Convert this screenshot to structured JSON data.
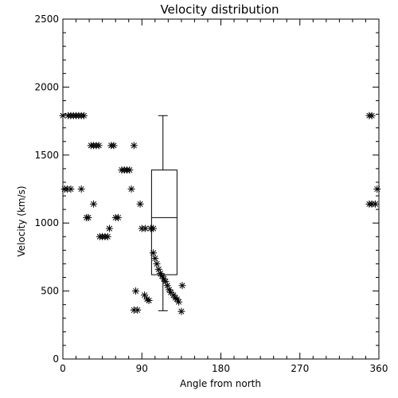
{
  "chart_data": {
    "type": "scatter",
    "title": "Velocity distribution",
    "xlabel": "Angle from north",
    "ylabel": "Velocity (km/s)",
    "xlim": [
      0,
      360
    ],
    "ylim": [
      0,
      2500
    ],
    "xticks": [
      0,
      90,
      180,
      270,
      360
    ],
    "yticks": [
      0,
      500,
      1000,
      1500,
      2000,
      2500
    ],
    "minor_ticks": true,
    "grid": false,
    "marker": "asterisk",
    "series": [
      {
        "points": [
          [
            0,
            1790
          ],
          [
            6,
            1790
          ],
          [
            9,
            1790
          ],
          [
            12,
            1790
          ],
          [
            15,
            1790
          ],
          [
            18,
            1790
          ],
          [
            21,
            1790
          ],
          [
            24,
            1790
          ],
          [
            2,
            1250
          ],
          [
            5,
            1250
          ],
          [
            9,
            1250
          ],
          [
            21,
            1250
          ],
          [
            27,
            1040
          ],
          [
            29,
            1040
          ],
          [
            32,
            1570
          ],
          [
            35,
            1570
          ],
          [
            38,
            1570
          ],
          [
            41,
            1570
          ],
          [
            35,
            1140
          ],
          [
            42,
            900
          ],
          [
            45,
            900
          ],
          [
            48,
            900
          ],
          [
            51,
            900
          ],
          [
            53,
            960
          ],
          [
            55,
            1570
          ],
          [
            58,
            1570
          ],
          [
            60,
            1040
          ],
          [
            63,
            1040
          ],
          [
            67,
            1390
          ],
          [
            70,
            1390
          ],
          [
            73,
            1390
          ],
          [
            76,
            1390
          ],
          [
            78,
            1250
          ],
          [
            81,
            1570
          ],
          [
            81,
            360
          ],
          [
            85,
            360
          ],
          [
            83,
            500
          ],
          [
            88,
            1140
          ],
          [
            90,
            960
          ],
          [
            94,
            960
          ],
          [
            100,
            960
          ],
          [
            103,
            960
          ],
          [
            93,
            470
          ],
          [
            96,
            440
          ],
          [
            98,
            430
          ],
          [
            103,
            780
          ],
          [
            105,
            740
          ],
          [
            107,
            700
          ],
          [
            109,
            660
          ],
          [
            111,
            630
          ],
          [
            113,
            610
          ],
          [
            115,
            590
          ],
          [
            117,
            570
          ],
          [
            119,
            540
          ],
          [
            121,
            510
          ],
          [
            123,
            490
          ],
          [
            126,
            470
          ],
          [
            128,
            450
          ],
          [
            130,
            440
          ],
          [
            132,
            420
          ],
          [
            136,
            540
          ],
          [
            135,
            350
          ],
          [
            349,
            1790
          ],
          [
            352,
            1790
          ],
          [
            349,
            1140
          ],
          [
            352,
            1140
          ],
          [
            356,
            1140
          ],
          [
            358,
            1250
          ]
        ]
      }
    ],
    "boxplot": {
      "x_center": 114,
      "x_range": [
        101,
        130
      ],
      "whisker_low": 355,
      "q1": 620,
      "median": 1040,
      "q3": 1390,
      "whisker_high": 1790
    }
  }
}
